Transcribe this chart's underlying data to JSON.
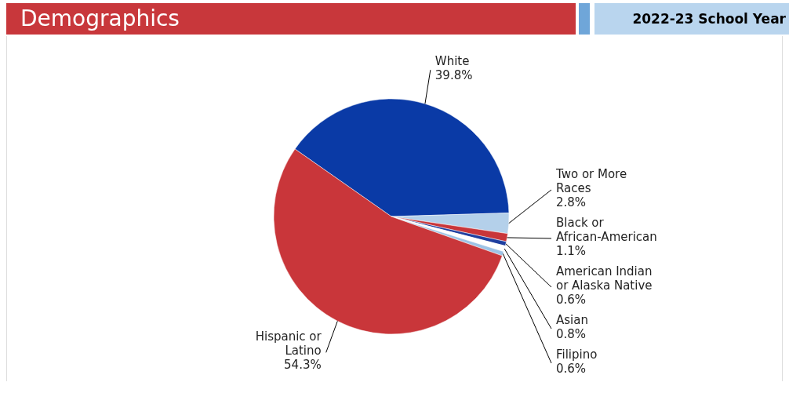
{
  "chart_data": {
    "type": "pie",
    "title": "Demographics",
    "subtitle": "2022-23 School Year",
    "categories": [
      "White",
      "Two or More Races",
      "Black or African-American",
      "American Indian or Alaska Native",
      "Asian",
      "Filipino",
      "Hispanic or Latino"
    ],
    "values": [
      39.8,
      2.8,
      1.1,
      0.6,
      0.8,
      0.6,
      54.3
    ],
    "value_labels": [
      "39.8%",
      "2.8%",
      "1.1%",
      "0.6%",
      "0.8%",
      "0.6%",
      "54.3%"
    ],
    "colors": [
      "#0a3aa6",
      "#b4d0ea",
      "#c9363a",
      "#1f3fa0",
      "#ffffff",
      "#9dc3e6",
      "#c9363a"
    ]
  }
}
